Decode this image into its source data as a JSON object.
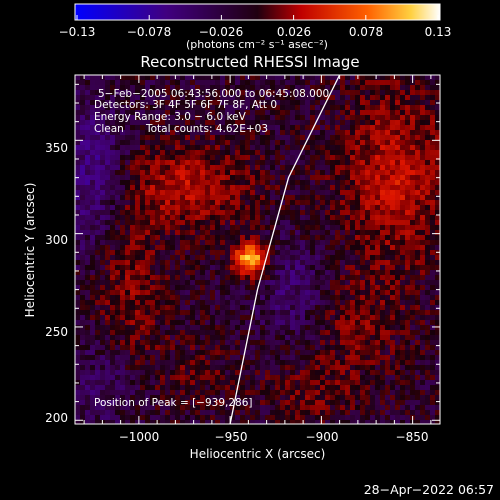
{
  "colorbar": {
    "ticks": [
      "−0.13",
      "−0.078",
      "−0.026",
      "0.026",
      "0.078",
      "0.13"
    ],
    "unit_label": "(photons cm⁻² s⁻¹ asec⁻²)"
  },
  "chart_data": {
    "type": "heatmap",
    "title": "Reconstructed RHESSI Image",
    "xlabel": "Heliocentric X (arcsec)",
    "ylabel": "Heliocentric Y (arcsec)",
    "xlim": [
      -1035,
      -835
    ],
    "ylim": [
      198,
      385
    ],
    "x_ticks": [
      "−1000",
      "−950",
      "−900",
      "−850"
    ],
    "y_ticks": [
      "350",
      "300",
      "250",
      "200"
    ],
    "colorbar_range": [
      -0.13,
      0.13
    ],
    "peak": [
      -939,
      286
    ],
    "annotations": [
      "5−Feb−2005 06:43:56.000 to 06:45:08.000",
      "Detectors: 3F 4F 5F 6F 7F 8F, Att 0",
      "Energy Range: 3.0 − 6.0 keV",
      "Clean",
      "Total counts: 4.62E+03"
    ],
    "peak_label": "Position of Peak = [−939,286]",
    "limb_curve": [
      [
        -950,
        198
      ],
      [
        -935,
        270
      ],
      [
        -918,
        330
      ],
      [
        -890,
        385
      ]
    ]
  },
  "footer": {
    "timestamp": "28−Apr−2022 06:57"
  },
  "colors": {
    "limb": "#ffffff",
    "axes": "#ffffff",
    "background": "#000000"
  }
}
